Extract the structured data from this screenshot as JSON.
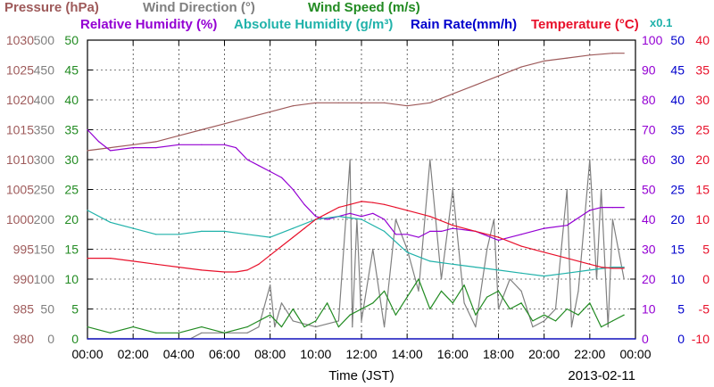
{
  "chart_data": {
    "type": "line",
    "xlabel": "Time (JST)",
    "date": "2013-02-11",
    "x_ticks": [
      "00:00",
      "02:00",
      "04:00",
      "06:00",
      "08:00",
      "10:00",
      "12:00",
      "14:00",
      "16:00",
      "18:00",
      "20:00",
      "22:00",
      "00:00"
    ],
    "xlim_hours": [
      0,
      24
    ],
    "grid": true,
    "legend": [
      {
        "label": "Pressure (hPa)",
        "color": "#9e5a5a"
      },
      {
        "label": "Wind Direction (°)",
        "color": "#808080"
      },
      {
        "label": "Wind Speed (m/s)",
        "color": "#228b22"
      },
      {
        "label": "Relative Humidity (%)",
        "color": "#9400d3"
      },
      {
        "label": "Absolute Humidity (g/m³)",
        "color": "#20b2aa"
      },
      {
        "label": "Rain Rate(mm/h)",
        "color": "#0000cd"
      },
      {
        "label": "Temperature (°C)",
        "color": "#e8102a"
      }
    ],
    "scale_note": "x0.1",
    "axes": {
      "pressure": {
        "range": [
          980,
          1030
        ],
        "ticks": [
          "980",
          "985",
          "990",
          "995",
          "1000",
          "1005",
          "1010",
          "1015",
          "1020",
          "1025",
          "1030"
        ],
        "color": "#9e5a5a"
      },
      "wind_direction": {
        "range": [
          0,
          500
        ],
        "ticks": [
          "0",
          "50",
          "100",
          "150",
          "200",
          "250",
          "300",
          "350",
          "400",
          "450",
          "500"
        ],
        "color": "#808080"
      },
      "wind_speed": {
        "range": [
          0,
          50
        ],
        "ticks": [
          "0",
          "5",
          "10",
          "15",
          "20",
          "25",
          "30",
          "35",
          "40",
          "45",
          "50"
        ],
        "color": "#228b22"
      },
      "humidity": {
        "range": [
          0,
          100
        ],
        "ticks": [
          "0",
          "10",
          "20",
          "30",
          "40",
          "50",
          "60",
          "70",
          "80",
          "90",
          "100"
        ],
        "color": "#9400d3"
      },
      "rain_rate": {
        "range": [
          0,
          50
        ],
        "ticks": [
          "0",
          "5",
          "10",
          "15",
          "20",
          "25",
          "30",
          "35",
          "40",
          "45",
          "50"
        ],
        "color": "#0000cd"
      },
      "temperature": {
        "range": [
          -10,
          40
        ],
        "ticks": [
          "-10",
          "-5",
          "0",
          "5",
          "10",
          "15",
          "20",
          "25",
          "30",
          "35",
          "40"
        ],
        "color": "#e8102a"
      }
    },
    "series": [
      {
        "name": "Pressure (hPa)",
        "axis": "pressure",
        "color": "#9e5a5a",
        "x": [
          0,
          1,
          2,
          3,
          4,
          5,
          6,
          7,
          8,
          9,
          10,
          11,
          12,
          13,
          14,
          15,
          16,
          17,
          18,
          19,
          20,
          21,
          22,
          23,
          23.5
        ],
        "y": [
          1011.5,
          1012,
          1012.5,
          1013,
          1014,
          1015,
          1016,
          1017,
          1018,
          1019,
          1019.5,
          1019.5,
          1019.5,
          1019.5,
          1019,
          1019.5,
          1021,
          1022.5,
          1024,
          1025.5,
          1026.5,
          1027,
          1027.5,
          1027.8,
          1027.8
        ]
      },
      {
        "name": "Wind Direction (°)",
        "axis": "wind_direction",
        "color": "#808080",
        "x": [
          0,
          2,
          4.5,
          5,
          6,
          7,
          7.5,
          8,
          8.2,
          8.5,
          9,
          10,
          11,
          11.5,
          11.6,
          11.8,
          12,
          12.5,
          13,
          13.5,
          14,
          14.5,
          15,
          15.5,
          16,
          16.5,
          17,
          17.5,
          17.8,
          18,
          18.5,
          19,
          19.5,
          20,
          20.5,
          21,
          21.2,
          21.5,
          22,
          22.3,
          22.5,
          22.8,
          23,
          23.5
        ],
        "y": [
          0,
          0,
          0,
          10,
          10,
          10,
          20,
          90,
          20,
          60,
          30,
          20,
          30,
          300,
          20,
          200,
          30,
          150,
          20,
          200,
          150,
          80,
          300,
          100,
          250,
          60,
          20,
          150,
          200,
          50,
          100,
          80,
          20,
          30,
          50,
          250,
          20,
          80,
          300,
          100,
          250,
          20,
          200,
          100
        ]
      },
      {
        "name": "Wind Speed (m/s)",
        "axis": "wind_speed",
        "color": "#228b22",
        "x": [
          0,
          1,
          2,
          3,
          4,
          5,
          6,
          7,
          8,
          8.5,
          9,
          9.5,
          10,
          10.5,
          11,
          11.5,
          12,
          12.5,
          13,
          13.5,
          14,
          14.5,
          15,
          15.5,
          16,
          16.5,
          17,
          17.5,
          18,
          18.5,
          19,
          19.5,
          20,
          20.5,
          21,
          21.5,
          22,
          22.5,
          23,
          23.5
        ],
        "y": [
          2,
          1,
          2,
          1,
          1,
          2,
          1,
          2,
          4,
          2,
          5,
          2,
          3,
          6,
          2,
          4,
          5,
          6,
          8,
          4,
          7,
          10,
          5,
          8,
          6,
          9,
          4,
          7,
          8,
          5,
          6,
          3,
          4,
          3,
          5,
          4,
          6,
          2,
          3,
          4
        ]
      },
      {
        "name": "Relative Humidity (%)",
        "axis": "humidity",
        "color": "#9400d3",
        "x": [
          0,
          0.5,
          1,
          2,
          3,
          4,
          5,
          6,
          6.5,
          7,
          7.5,
          8,
          8.5,
          9,
          9.5,
          10,
          10.5,
          11,
          11.5,
          12,
          12.5,
          13,
          13.5,
          14,
          14.5,
          15,
          15.5,
          16,
          17,
          18,
          19,
          20,
          21,
          22,
          22.5,
          23,
          23.5
        ],
        "y": [
          70,
          66,
          63,
          64,
          64,
          65,
          65,
          65,
          64,
          60,
          58,
          56,
          54,
          50,
          45,
          41,
          40,
          41,
          42,
          41,
          42,
          40,
          35,
          35,
          34,
          36,
          36,
          37,
          36,
          33,
          35,
          37,
          38,
          43,
          44,
          44,
          44
        ]
      },
      {
        "name": "Absolute Humidity (g/m³)",
        "axis": "humidity",
        "color": "#20b2aa",
        "x": [
          0,
          1,
          2,
          3,
          4,
          5,
          6,
          7,
          8,
          9,
          10,
          11,
          12,
          13,
          14,
          15,
          16,
          17,
          18,
          19,
          20,
          21,
          22,
          23,
          23.5
        ],
        "y": [
          43,
          39,
          37,
          35,
          35,
          36,
          36,
          35,
          34,
          37,
          40,
          41,
          40,
          36,
          29,
          26,
          25,
          24,
          23,
          22,
          21,
          22,
          23,
          24,
          24
        ]
      },
      {
        "name": "Rain Rate(mm/h)",
        "axis": "rain_rate",
        "color": "#0000cd",
        "x": [
          0,
          24
        ],
        "y": [
          0,
          0
        ]
      },
      {
        "name": "Temperature (°C)",
        "axis": "temperature",
        "color": "#e8102a",
        "x": [
          0,
          1,
          2,
          3,
          4,
          5,
          6,
          6.5,
          7,
          7.5,
          8,
          8.5,
          9,
          9.5,
          10,
          10.5,
          11,
          11.5,
          12,
          12.5,
          13,
          13.5,
          14,
          15,
          16,
          17,
          18,
          19,
          20,
          21,
          22,
          22.5,
          23,
          23.5
        ],
        "y": [
          3.5,
          3.5,
          3,
          2.5,
          2,
          1.5,
          1.2,
          1.2,
          1.5,
          2.5,
          4,
          5.5,
          7,
          8.5,
          10,
          11,
          12,
          12.5,
          13,
          12.8,
          12.5,
          12,
          11.5,
          10.5,
          9,
          8,
          7,
          5.5,
          4.5,
          3.5,
          2.5,
          2,
          1.8,
          1.8
        ]
      }
    ]
  }
}
